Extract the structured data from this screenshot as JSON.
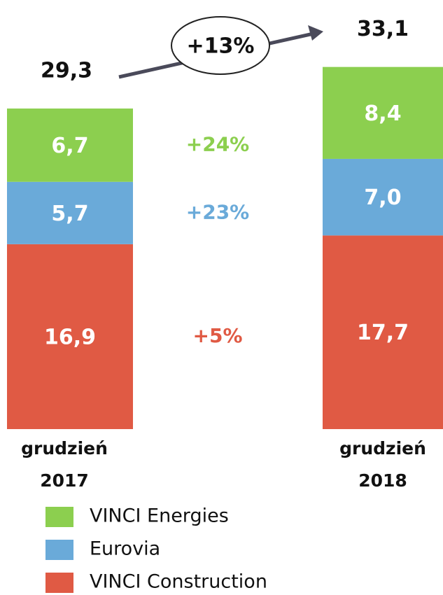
{
  "chart_data": {
    "type": "stacked_bar",
    "categories": [
      "grudzień 2017",
      "grudzień 2018"
    ],
    "series": [
      {
        "name": "VINCI Construction",
        "color": "#e05a44",
        "values": [
          16.9,
          17.7
        ],
        "value_labels": [
          "16,9",
          "17,7"
        ],
        "change": "+5%"
      },
      {
        "name": "Eurovia",
        "color": "#6aaad9",
        "values": [
          5.7,
          7.0
        ],
        "value_labels": [
          "5,7",
          "7,0"
        ],
        "change": "+23%"
      },
      {
        "name": "VINCI Energies",
        "color": "#8ccf4f",
        "values": [
          6.7,
          8.4
        ],
        "value_labels": [
          "6,7",
          "8,4"
        ],
        "change": "+24%"
      }
    ],
    "totals": [
      29.3,
      33.1
    ],
    "total_labels": [
      "29,3",
      "33,1"
    ],
    "total_change": "+13%"
  }
}
